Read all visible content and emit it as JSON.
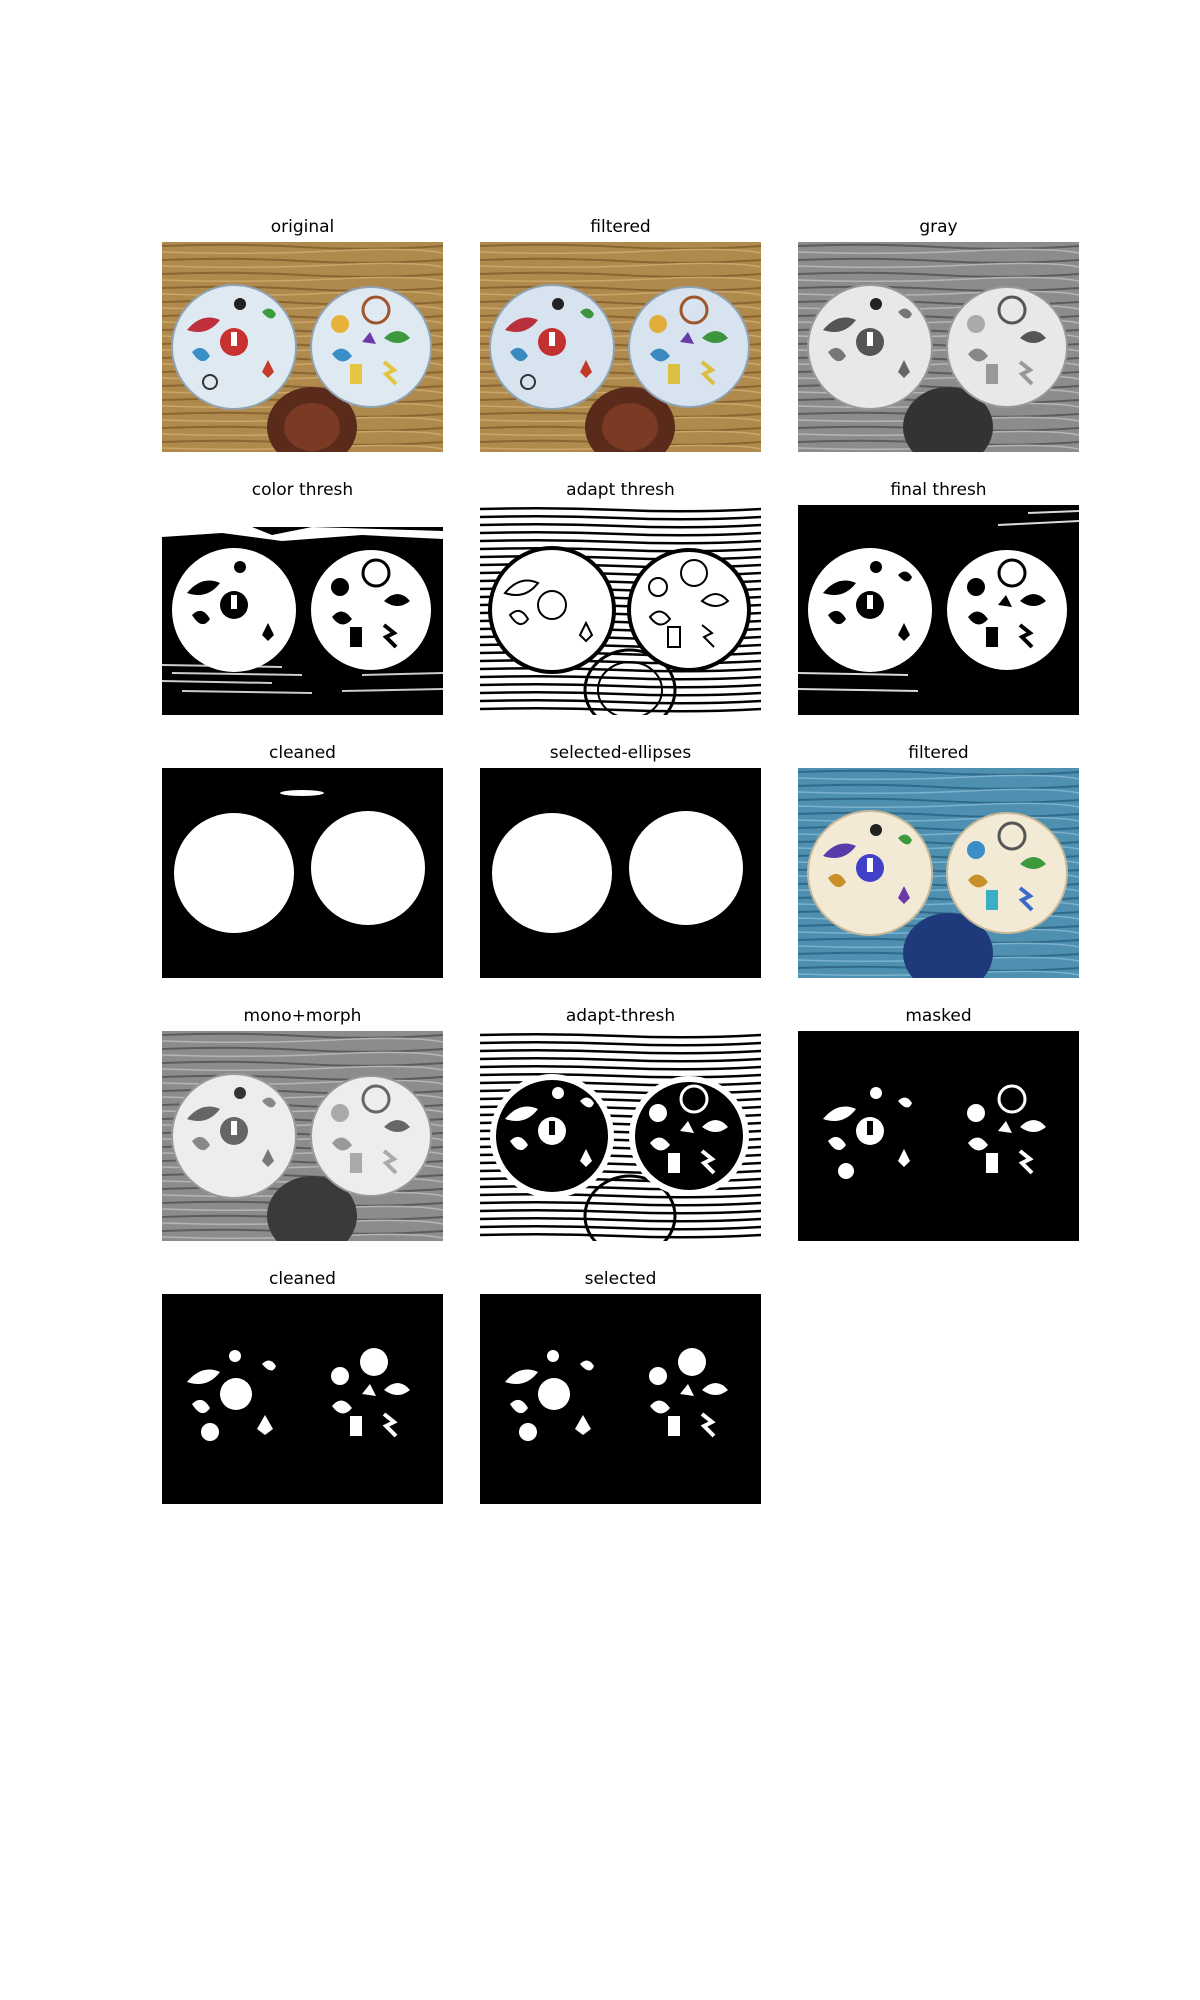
{
  "panels": [
    {
      "title": "original",
      "image": "original-photo"
    },
    {
      "title": "filtered",
      "image": "filtered-photo"
    },
    {
      "title": "gray",
      "image": "gray-photo"
    },
    {
      "title": "color thresh",
      "image": "color-thresh-mask"
    },
    {
      "title": "adapt thresh",
      "image": "adapt-thresh-mask"
    },
    {
      "title": "final thresh",
      "image": "final-thresh-mask"
    },
    {
      "title": "cleaned",
      "image": "cleaned-disc-mask"
    },
    {
      "title": "selected-ellipses",
      "image": "selected-ellipses-mask"
    },
    {
      "title": "filtered",
      "image": "filtered-color-inverted-photo"
    },
    {
      "title": "mono+morph",
      "image": "mono-morph-photo"
    },
    {
      "title": "adapt-thresh",
      "image": "adapt-thresh-inner-mask"
    },
    {
      "title": "masked",
      "image": "masked-symbols"
    },
    {
      "title": "cleaned",
      "image": "cleaned-symbols"
    },
    {
      "title": "selected",
      "image": "selected-symbols"
    }
  ],
  "colors": {
    "wood": "#a8834a",
    "wood_dark": "#5a2a1a",
    "card": "#dfe9f2",
    "card_warm": "#f3ead6",
    "inverted_wood": "#4f8fb0",
    "black": "#000000",
    "white": "#ffffff"
  }
}
